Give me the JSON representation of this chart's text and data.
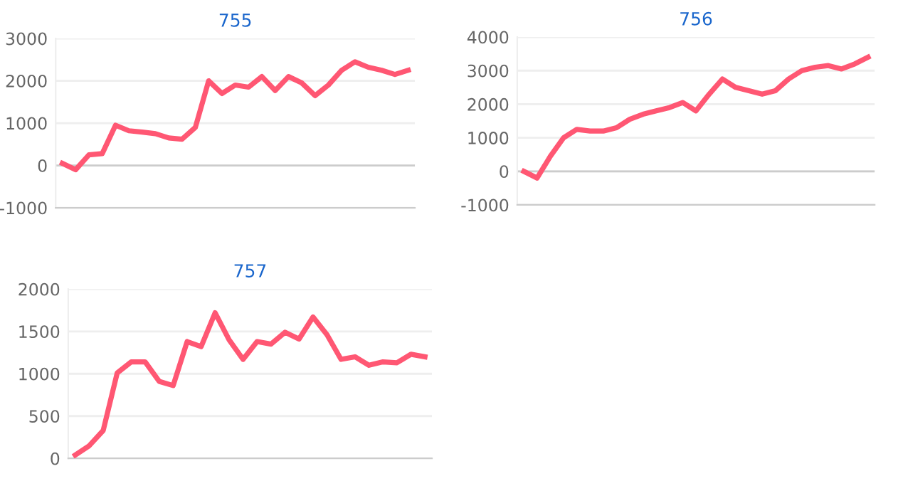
{
  "chart_data": [
    {
      "type": "line",
      "title": "755",
      "categories": [
        null,
        null,
        null,
        null,
        null,
        null,
        null,
        null,
        null,
        null,
        null,
        null,
        null,
        null,
        null,
        null,
        null,
        null,
        null,
        null,
        null,
        null,
        null,
        null,
        null,
        null,
        null
      ],
      "series": [
        {
          "color": "#ff5773",
          "values": [
            50,
            -100,
            250,
            280,
            950,
            820,
            790,
            750,
            650,
            620,
            900,
            2000,
            1700,
            1900,
            1850,
            2100,
            1770,
            2100,
            1950,
            1650,
            1900,
            2250,
            2450,
            2320,
            2250,
            2150,
            2250
          ]
        }
      ],
      "ylim": [
        -1000,
        3000
      ],
      "yticks": [
        -1000,
        0,
        1000,
        2000,
        3000
      ],
      "grid": "y",
      "marker": "none",
      "line_style": "solid"
    },
    {
      "type": "line",
      "title": "756",
      "categories": [
        null,
        null,
        null,
        null,
        null,
        null,
        null,
        null,
        null,
        null,
        null,
        null,
        null,
        null,
        null,
        null,
        null,
        null,
        null,
        null,
        null,
        null,
        null,
        null,
        null,
        null,
        null
      ],
      "series": [
        {
          "color": "#ff5773",
          "values": [
            0,
            -200,
            450,
            1000,
            1250,
            1200,
            1200,
            1300,
            1550,
            1700,
            1800,
            1900,
            2050,
            1800,
            2300,
            2750,
            2500,
            2400,
            2300,
            2400,
            2750,
            3000,
            3100,
            3150,
            3050,
            3200,
            3400
          ]
        }
      ],
      "ylim": [
        -1000,
        4000
      ],
      "yticks": [
        -1000,
        0,
        1000,
        2000,
        3000,
        4000
      ],
      "grid": "y",
      "marker": "none",
      "line_style": "solid"
    },
    {
      "type": "line",
      "title": "757",
      "categories": [
        null,
        null,
        null,
        null,
        null,
        null,
        null,
        null,
        null,
        null,
        null,
        null,
        null,
        null,
        null,
        null,
        null,
        null,
        null,
        null,
        null,
        null,
        null,
        null,
        null,
        null
      ],
      "series": [
        {
          "color": "#ff5773",
          "values": [
            40,
            150,
            330,
            1010,
            1140,
            1140,
            910,
            860,
            1380,
            1320,
            1720,
            1400,
            1170,
            1380,
            1350,
            1490,
            1410,
            1670,
            1460,
            1170,
            1200,
            1100,
            1140,
            1130,
            1230,
            1200
          ]
        }
      ],
      "ylim": [
        0,
        2000
      ],
      "yticks": [
        0,
        500,
        1000,
        1500,
        2000
      ],
      "grid": "y",
      "marker": "none",
      "line_style": "solid"
    }
  ]
}
